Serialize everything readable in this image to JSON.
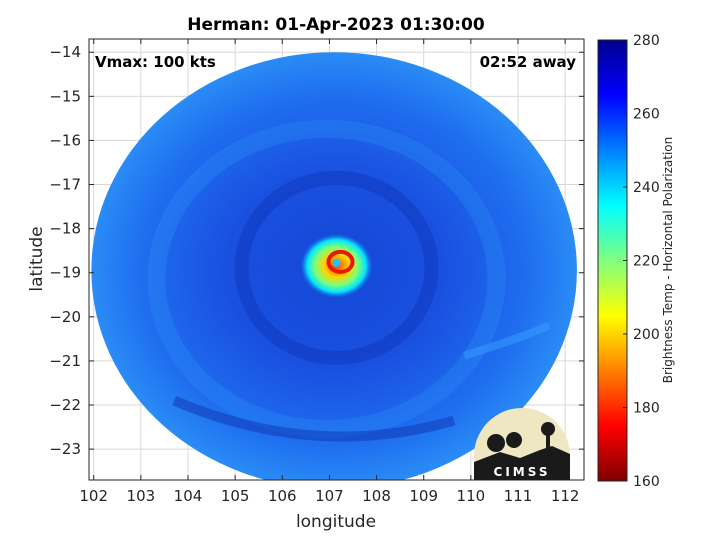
{
  "title": "Herman: 01-Apr-2023 01:30:00",
  "annotations": {
    "vmax": "Vmax: 100 kts",
    "eta": "02:52 away"
  },
  "map": {
    "xlabel": "longitude",
    "ylabel": "latitude",
    "xlim": [
      101.9,
      112.4
    ],
    "ylim": [
      -23.7,
      -13.7
    ],
    "xticks": [
      102,
      103,
      104,
      105,
      106,
      107,
      108,
      109,
      110,
      111,
      112
    ],
    "yticks": [
      -14,
      -15,
      -16,
      -17,
      -18,
      -19,
      -20,
      -21,
      -22,
      -23
    ],
    "swath_center": [
      107.1,
      -18.95
    ],
    "swath_radius_lon": 5.15,
    "swath_radius_lat": 4.95,
    "eye_center": [
      107.15,
      -18.8
    ],
    "background_tb": 255,
    "core_tb": 185,
    "eye_tb": 230
  },
  "colorbar": {
    "label": "Brightness Temp - Horizontal Polarization",
    "min": 160,
    "max": 280,
    "ticks": [
      280,
      260,
      240,
      220,
      200,
      180,
      160
    ],
    "colormap": [
      "#7f0000",
      "#ff0000",
      "#ff8000",
      "#ffff00",
      "#80ff80",
      "#00ffff",
      "#0080ff",
      "#0000ff",
      "#00008f"
    ]
  },
  "logo": {
    "text": "CIMSS"
  },
  "colors": {
    "swath_base": "#1a55e6",
    "swath_light": "#2a8cf5",
    "swath_dark": "#0d32b0",
    "grid": "#d9d9d9"
  }
}
